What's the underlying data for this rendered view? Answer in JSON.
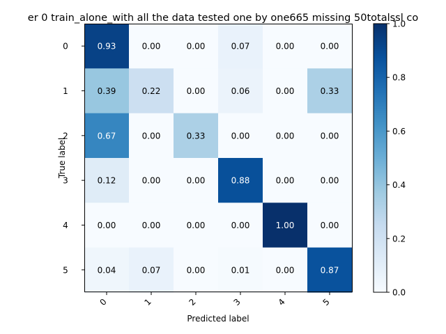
{
  "chart_data": {
    "type": "heatmap",
    "title": "er 0  train_alone_with all the data tested one by one665 missing 50totalssl co",
    "xlabel": "Predicted label",
    "ylabel": "True label",
    "x_categories": [
      "0",
      "1",
      "2",
      "3",
      "4",
      "5"
    ],
    "y_categories": [
      "0",
      "1",
      "2",
      "3",
      "4",
      "5"
    ],
    "values": [
      [
        0.93,
        0.0,
        0.0,
        0.07,
        0.0,
        0.0
      ],
      [
        0.39,
        0.22,
        0.0,
        0.06,
        0.0,
        0.33
      ],
      [
        0.67,
        0.0,
        0.33,
        0.0,
        0.0,
        0.0
      ],
      [
        0.12,
        0.0,
        0.0,
        0.88,
        0.0,
        0.0
      ],
      [
        0.0,
        0.0,
        0.0,
        0.0,
        1.0,
        0.0
      ],
      [
        0.04,
        0.07,
        0.0,
        0.01,
        0.0,
        0.87
      ]
    ],
    "value_format": "0.00",
    "colormap": "Blues",
    "colorbar": {
      "range": [
        0.0,
        1.0
      ],
      "ticks": [
        0.0,
        0.2,
        0.4,
        0.6,
        0.8,
        1.0
      ],
      "tick_labels": [
        "0.0",
        "0.2",
        "0.4",
        "0.6",
        "0.8",
        "1.0"
      ]
    },
    "x_tick_rotation_deg": 45,
    "grid": false
  }
}
